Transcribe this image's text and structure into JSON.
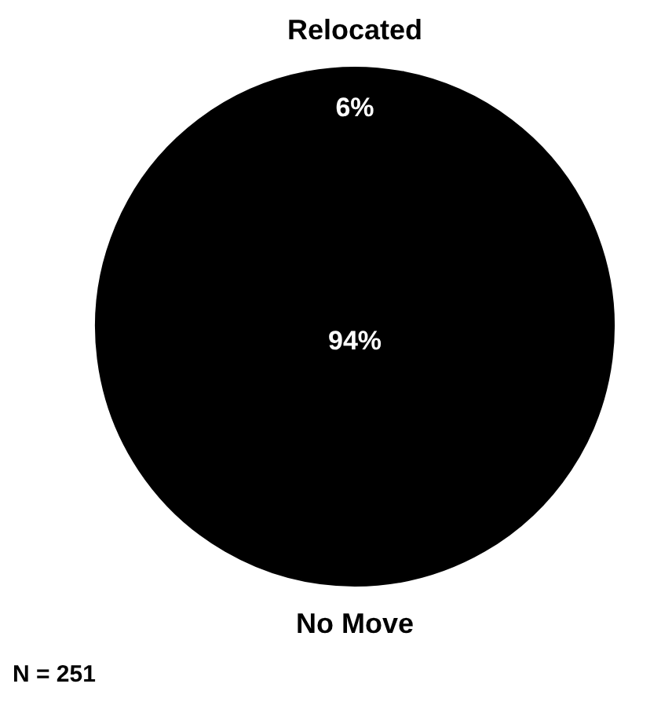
{
  "chart_data": {
    "type": "pie",
    "categories": [
      "Relocated",
      "No Move"
    ],
    "values": [
      6,
      94
    ],
    "colors": [
      "#000000",
      "#000000"
    ],
    "value_labels": [
      "6%",
      "94%"
    ],
    "annotations": [
      "N = 251"
    ]
  }
}
